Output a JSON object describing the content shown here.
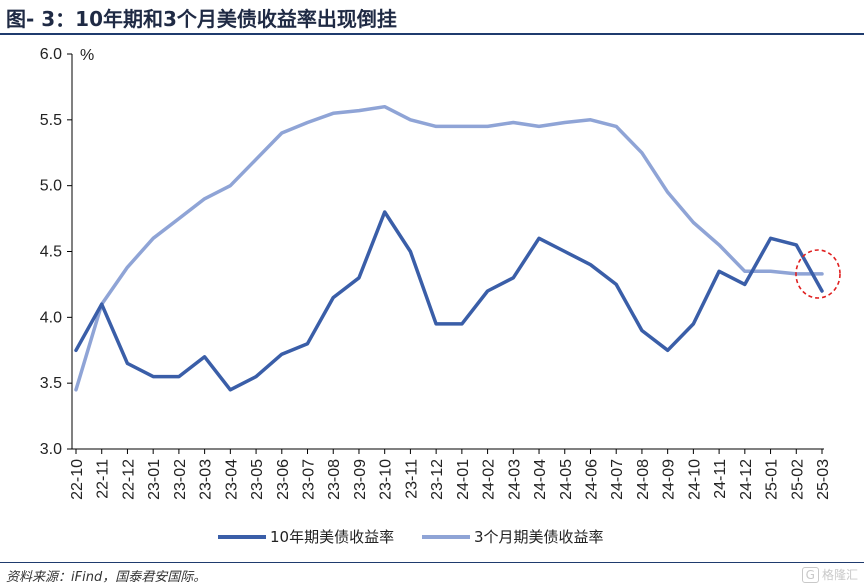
{
  "title": "图- 3：10年期和3个月美债收益率出现倒挂",
  "source": "资料来源：iFind，国泰君安国际。",
  "watermark": "格隆汇",
  "chart_data": {
    "type": "line",
    "title": "图- 3：10年期和3个月美债收益率出现倒挂",
    "xlabel": "",
    "ylabel": "%",
    "ylim": [
      3.0,
      6.0
    ],
    "yticks": [
      "3.0",
      "3.5",
      "4.0",
      "4.5",
      "5.0",
      "5.5",
      "6.0"
    ],
    "grid": false,
    "legend_position": "bottom",
    "x_tick_labels": [
      "22-10",
      "22-11",
      "22-12",
      "23-01",
      "23-02",
      "23-03",
      "23-04",
      "23-05",
      "23-06",
      "23-07",
      "23-08",
      "23-09",
      "23-10",
      "23-11",
      "23-12",
      "24-01",
      "24-02",
      "24-03",
      "24-04",
      "24-05",
      "24-06",
      "24-07",
      "24-08",
      "24-09",
      "24-10",
      "24-11",
      "24-12",
      "25-01",
      "25-02",
      "25-03"
    ],
    "x": [
      "22-10",
      "22-11",
      "22-12",
      "23-01",
      "23-02",
      "23-03",
      "23-04",
      "23-05",
      "23-06",
      "23-07",
      "23-08",
      "23-09",
      "23-10",
      "23-11",
      "23-12",
      "24-01",
      "24-02",
      "24-03",
      "24-04",
      "24-05",
      "24-06",
      "24-07",
      "24-08",
      "24-09",
      "24-10",
      "24-11",
      "24-12",
      "25-01",
      "25-02",
      "25-03"
    ],
    "series": [
      {
        "name": "10年期美债收益率",
        "color": "#3a5ea8",
        "values": [
          3.75,
          4.1,
          3.65,
          3.55,
          3.55,
          3.7,
          3.45,
          3.55,
          3.72,
          3.8,
          4.15,
          4.3,
          4.8,
          4.5,
          3.95,
          3.95,
          4.2,
          4.3,
          4.6,
          4.5,
          4.4,
          4.25,
          3.9,
          3.75,
          3.95,
          4.35,
          4.25,
          4.6,
          4.55,
          4.2
        ]
      },
      {
        "name": "3个月期美债收益率",
        "color": "#8fa4d6",
        "values": [
          3.45,
          4.1,
          4.38,
          4.6,
          4.75,
          4.9,
          5.0,
          5.2,
          5.4,
          5.48,
          5.55,
          5.57,
          5.6,
          5.5,
          5.45,
          5.45,
          5.45,
          5.48,
          5.45,
          5.48,
          5.5,
          5.45,
          5.25,
          4.95,
          4.72,
          4.55,
          4.35,
          4.35,
          4.33,
          4.33
        ]
      }
    ]
  }
}
